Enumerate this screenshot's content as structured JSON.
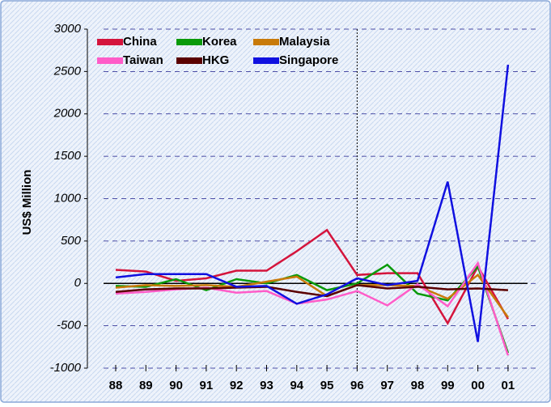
{
  "chart_data": {
    "type": "line",
    "y_axis_label": "US$ Million",
    "categories": [
      "88",
      "89",
      "90",
      "91",
      "92",
      "93",
      "94",
      "95",
      "96",
      "97",
      "98",
      "99",
      "00",
      "01"
    ],
    "series": [
      {
        "name": "China",
        "color": "#d4143c",
        "values": [
          160,
          140,
          30,
          60,
          150,
          150,
          380,
          630,
          100,
          120,
          120,
          -470,
          200,
          -420
        ]
      },
      {
        "name": "Korea",
        "color": "#0a9a0a",
        "values": [
          -30,
          -40,
          50,
          -80,
          50,
          0,
          100,
          -80,
          0,
          220,
          -120,
          -200,
          200,
          -820
        ]
      },
      {
        "name": "Malaysia",
        "color": "#c87a0a",
        "values": [
          -50,
          -20,
          -30,
          -20,
          -40,
          20,
          80,
          -150,
          -20,
          -20,
          -30,
          -180,
          100,
          -400
        ]
      },
      {
        "name": "Taiwan",
        "color": "#ff5cc8",
        "values": [
          -120,
          -100,
          -70,
          -50,
          -110,
          -90,
          -240,
          -190,
          -90,
          -260,
          -10,
          -270,
          240,
          -850
        ]
      },
      {
        "name": "HKG",
        "color": "#5a0000",
        "values": [
          -100,
          -70,
          -60,
          -60,
          -50,
          -40,
          -100,
          -150,
          -20,
          -60,
          -40,
          -70,
          -60,
          -80
        ]
      },
      {
        "name": "Singapore",
        "color": "#1010e0",
        "values": [
          70,
          110,
          110,
          110,
          -40,
          -30,
          -240,
          -130,
          60,
          -20,
          30,
          1200,
          -690,
          2580
        ]
      }
    ],
    "ylim": [
      -1000,
      3000
    ],
    "yticks": [
      -1000,
      -500,
      0,
      500,
      1000,
      1500,
      2000,
      2500,
      3000
    ],
    "grid": true,
    "divider_category": "96",
    "legend_position": "upper left"
  }
}
